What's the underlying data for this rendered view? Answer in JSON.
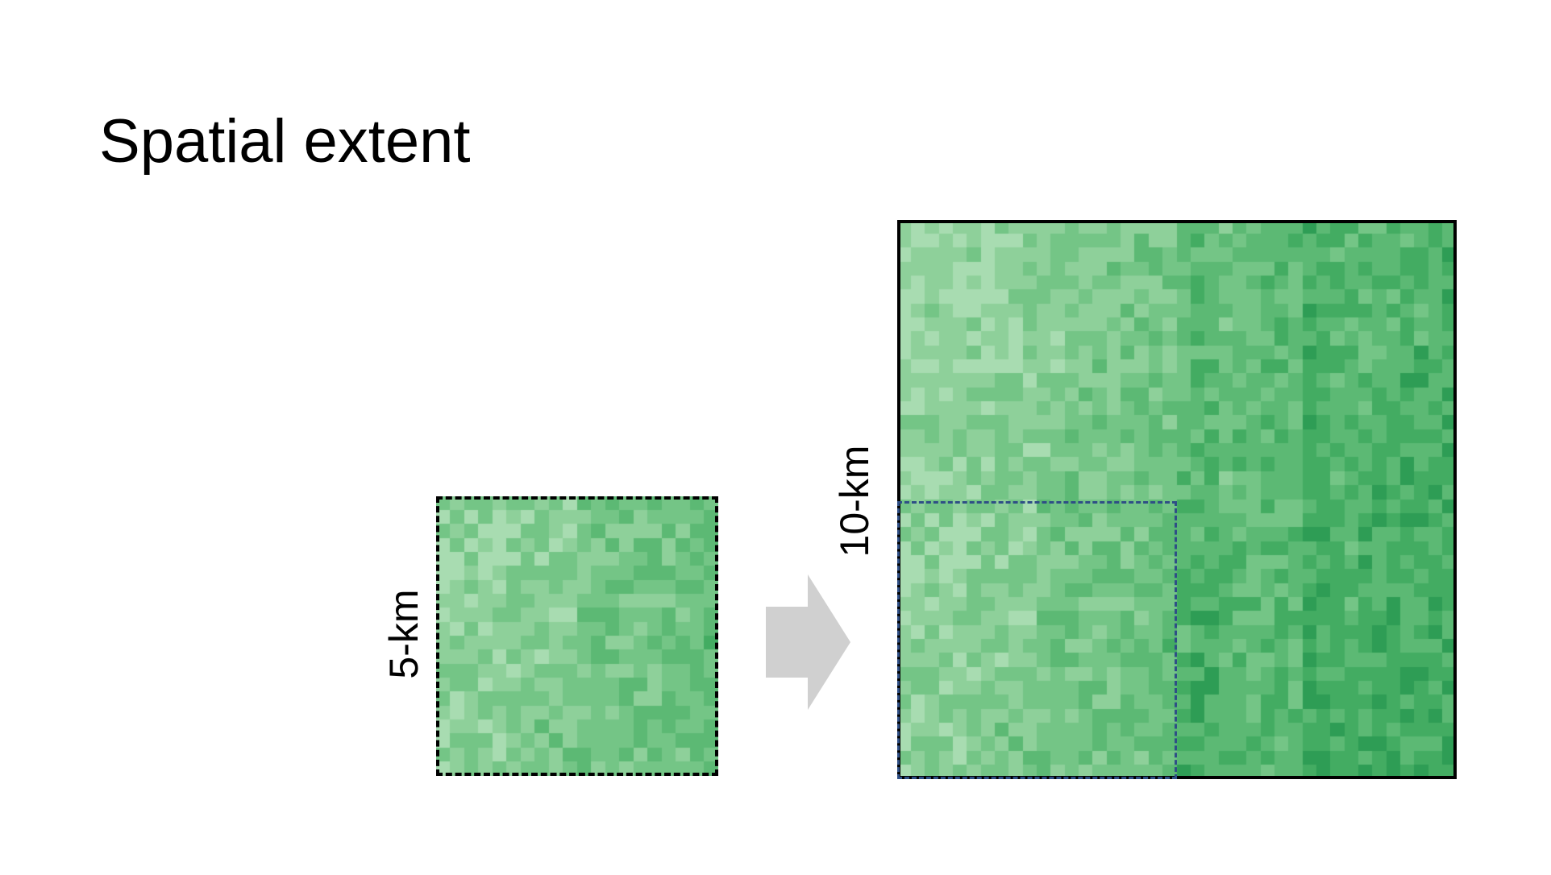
{
  "slide": {
    "title": "Spatial extent"
  },
  "labels": {
    "small_extent": "5-km",
    "large_extent": "10-km"
  },
  "grids": {
    "small_cells": 20,
    "large_cells": 40,
    "palette": [
      "#e2f3e4",
      "#c6e9cb",
      "#a8dcb1",
      "#8ed09a",
      "#74c586",
      "#5cb974",
      "#43ac62",
      "#2e9d55"
    ]
  },
  "colors": {
    "arrow": "#d0d0d0",
    "subset_frame": "#2f4f86",
    "frame": "#000000"
  }
}
